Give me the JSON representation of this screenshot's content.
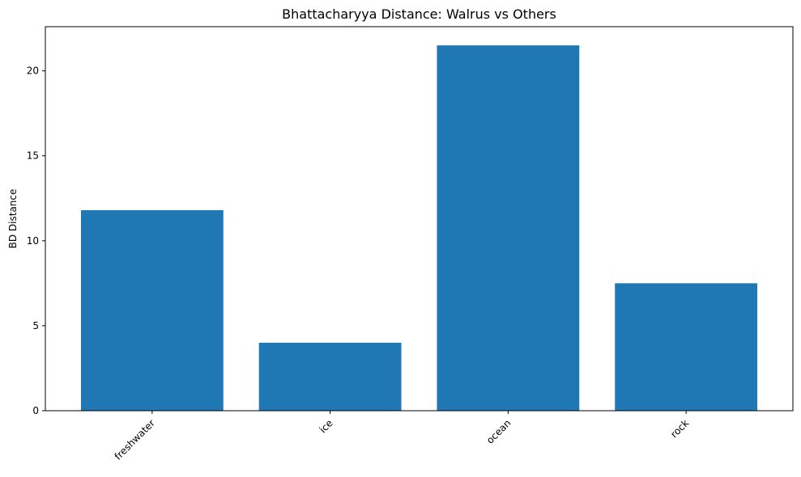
{
  "chart_data": {
    "type": "bar",
    "title": "Bhattacharyya Distance: Walrus vs Others",
    "xlabel": "",
    "ylabel": "BD Distance",
    "categories": [
      "freshwater",
      "ice",
      "ocean",
      "rock"
    ],
    "values": [
      11.8,
      4.0,
      21.5,
      7.5
    ],
    "ylim": [
      0,
      22.6
    ],
    "yticks": [
      0,
      5,
      10,
      15,
      20
    ],
    "grid": false,
    "bar_color": "#1f77b4"
  }
}
